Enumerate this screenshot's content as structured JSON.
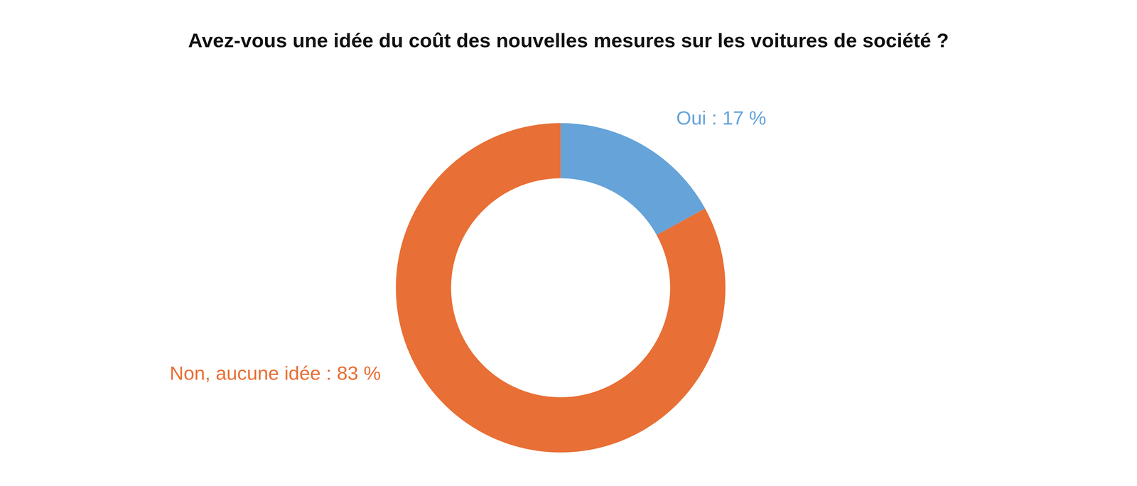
{
  "chart_data": {
    "type": "pie",
    "title": "Avez-vous une idée du coût des nouvelles mesures sur les voitures de société ?",
    "categories": [
      "Oui",
      "Non, aucune idée"
    ],
    "values": [
      17,
      83
    ],
    "value_labels": [
      "Oui : 17 %",
      "Non, aucune idée : 83 %"
    ],
    "colors": [
      "#65a3d9",
      "#e86f35"
    ],
    "data_labels": true
  }
}
